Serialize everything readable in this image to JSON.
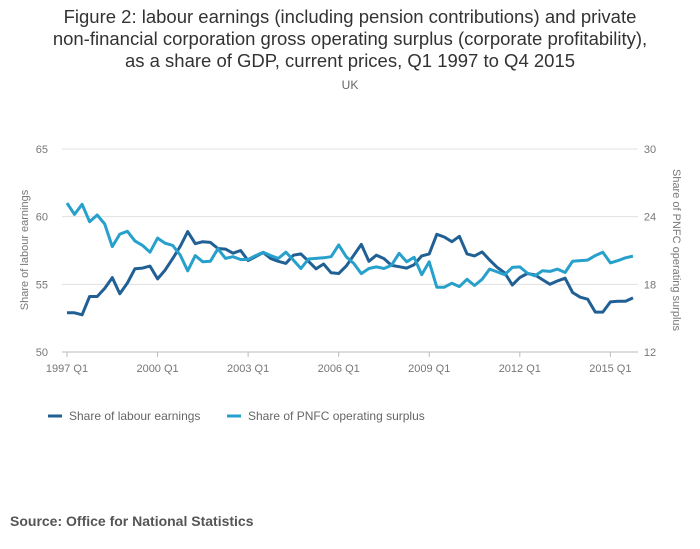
{
  "title_lines": [
    "Figure 2: labour earnings (including pension contributions) and private",
    "non-financial corporation gross operating surplus (corporate profitability),",
    "as a share of GDP, current prices, Q1 1997 to Q4 2015"
  ],
  "subtitle": "UK",
  "source": "Source: Office for National Statistics",
  "chart_data": {
    "type": "line",
    "title": "Figure 2: labour earnings (including pension contributions) and private non-financial corporation gross operating surplus (corporate profitability), as a share of GDP, current prices, Q1 1997 to Q4 2015",
    "x_start": "1997 Q1",
    "x_end": "2015 Q4",
    "x_ticks": [
      "1997 Q1",
      "2000 Q1",
      "2003 Q1",
      "2006 Q1",
      "2009 Q1",
      "2012 Q1",
      "2015 Q1"
    ],
    "x_tick_index": [
      0,
      12,
      24,
      36,
      48,
      60,
      72
    ],
    "ylabel": "Share of labour earnings",
    "ylabel_right": "Share of PNFC operating surplus",
    "ylim": [
      50,
      65
    ],
    "ylim_right": [
      12,
      30
    ],
    "y_ticks": [
      "50",
      "55",
      "60",
      "65"
    ],
    "y_ticks_right": [
      "12",
      "18",
      "24",
      "30"
    ],
    "grid": true,
    "legend_position": "bottom-left",
    "colors": {
      "labour": "#206095",
      "pnfc": "#27a0cc",
      "grid": "#e0e0e0",
      "axis_text": "#777777"
    },
    "series": [
      {
        "name": "Share of labour earnings",
        "axis": "left",
        "values": [
          52.9,
          52.9,
          52.75,
          54.1,
          54.1,
          54.7,
          55.5,
          54.3,
          55.1,
          56.15,
          56.2,
          56.35,
          55.4,
          56.05,
          56.9,
          57.8,
          58.9,
          58.0,
          58.15,
          58.1,
          57.65,
          57.6,
          57.3,
          57.5,
          56.75,
          57.05,
          57.35,
          56.9,
          56.7,
          56.55,
          57.15,
          57.25,
          56.7,
          56.15,
          56.5,
          55.85,
          55.8,
          56.35,
          57.15,
          57.95,
          56.7,
          57.15,
          56.9,
          56.4,
          56.3,
          56.2,
          56.45,
          57.1,
          57.25,
          58.7,
          58.5,
          58.15,
          58.55,
          57.25,
          57.1,
          57.4,
          56.8,
          56.25,
          55.85,
          54.95,
          55.5,
          55.8,
          55.7,
          55.35,
          55.0,
          55.25,
          55.45,
          54.4,
          54.05,
          53.9,
          52.95,
          52.95,
          53.7,
          53.75,
          53.75,
          54.0
        ]
      },
      {
        "name": "Share of PNFC operating surplus",
        "axis": "right",
        "values": [
          25.2,
          24.2,
          25.1,
          23.55,
          24.15,
          23.35,
          21.35,
          22.45,
          22.7,
          21.85,
          21.45,
          20.85,
          22.1,
          21.65,
          21.45,
          20.6,
          19.2,
          20.55,
          20.0,
          20.05,
          21.15,
          20.3,
          20.45,
          20.2,
          20.2,
          20.55,
          20.85,
          20.55,
          20.3,
          20.85,
          20.15,
          19.4,
          20.25,
          20.3,
          20.35,
          20.45,
          21.5,
          20.45,
          19.85,
          18.95,
          19.4,
          19.55,
          19.4,
          19.7,
          20.75,
          20.0,
          20.4,
          18.85,
          20.0,
          17.75,
          17.75,
          18.1,
          17.8,
          18.45,
          17.9,
          18.45,
          19.35,
          19.1,
          18.85,
          19.5,
          19.55,
          19.0,
          18.75,
          19.2,
          19.15,
          19.35,
          19.05,
          20.05,
          20.1,
          20.15,
          20.55,
          20.85,
          19.9,
          20.1,
          20.35,
          20.5
        ]
      }
    ]
  }
}
